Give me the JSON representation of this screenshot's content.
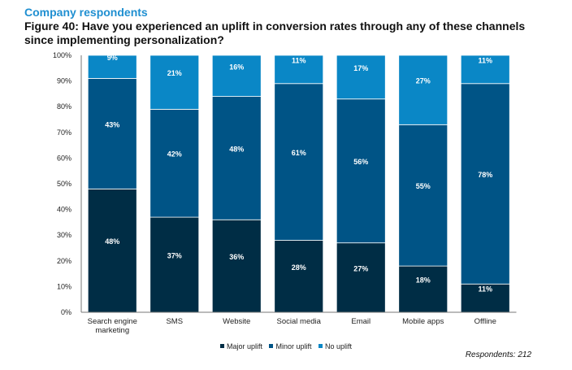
{
  "header": {
    "subtitle": "Company respondents",
    "title": "Figure 40: Have you experienced an uplift in conversion rates through any of these channels since implementing personalization?"
  },
  "note": "Respondents: 212",
  "colors": {
    "Major uplift": "#002d45",
    "Minor uplift": "#005486",
    "No uplift": "#0a87c6"
  },
  "chart_data": {
    "type": "bar",
    "stacked": true,
    "categories": [
      "Search engine marketing",
      "SMS",
      "Website",
      "Social media",
      "Email",
      "Mobile apps",
      "Offline"
    ],
    "category_lines": [
      [
        "Search engine",
        "marketing"
      ],
      [
        "SMS"
      ],
      [
        "Website"
      ],
      [
        "Social media"
      ],
      [
        "Email"
      ],
      [
        "Mobile apps"
      ],
      [
        "Offline"
      ]
    ],
    "series": [
      {
        "name": "Major uplift",
        "values": [
          48,
          37,
          36,
          28,
          27,
          18,
          11
        ]
      },
      {
        "name": "Minor uplift",
        "values": [
          43,
          42,
          48,
          61,
          56,
          55,
          78
        ]
      },
      {
        "name": "No uplift",
        "values": [
          9,
          21,
          16,
          11,
          17,
          27,
          11
        ]
      }
    ],
    "ylim": [
      0,
      100
    ],
    "yticks": [
      "0%",
      "10%",
      "20%",
      "30%",
      "40%",
      "50%",
      "60%",
      "70%",
      "80%",
      "90%",
      "100%"
    ],
    "unit": "%",
    "legend_position": "bottom",
    "grid": false
  }
}
